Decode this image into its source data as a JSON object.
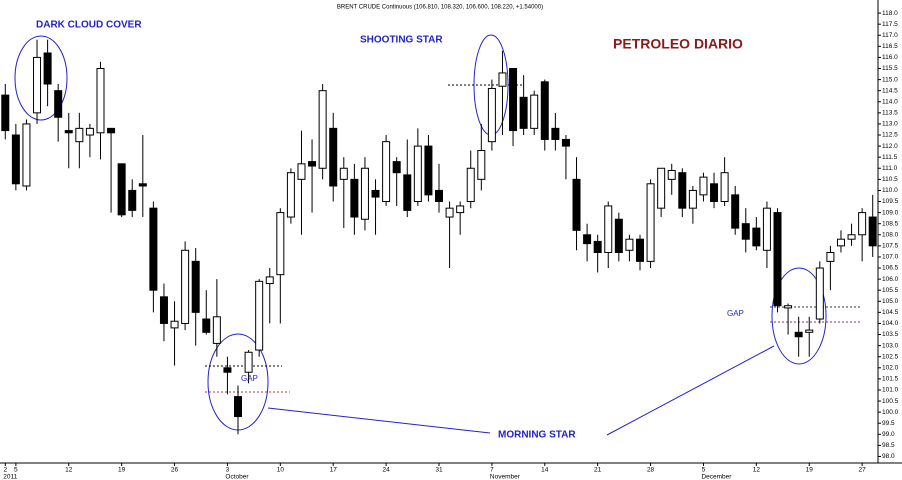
{
  "chart_data": {
    "type": "candlestick",
    "title": "PETROLEO DIARIO",
    "subtitle": "BRENT CRUDE Continuous (106.810, 108.320, 106.600, 108.220, +1.54000)",
    "annotations": [
      "DARK CLOUD COVER",
      "SHOOTING STAR",
      "MORNING STAR",
      "GAP",
      "GAP"
    ],
    "up_color": "#ffffff",
    "down_color": "#000000",
    "categories": [
      "2",
      "5",
      null,
      null,
      null,
      null,
      "12",
      null,
      null,
      null,
      null,
      "19",
      null,
      null,
      null,
      null,
      "26",
      null,
      null,
      null,
      null,
      "3",
      null,
      null,
      null,
      null,
      "10",
      null,
      null,
      null,
      null,
      "17",
      null,
      null,
      null,
      null,
      "24",
      null,
      null,
      null,
      null,
      "31",
      null,
      null,
      null,
      null,
      "7",
      null,
      null,
      null,
      null,
      "14",
      null,
      null,
      null,
      null,
      "21",
      null,
      null,
      null,
      null,
      "28",
      null,
      null,
      null,
      null,
      "5",
      null,
      null,
      null,
      null,
      "12",
      null,
      null,
      null,
      null,
      "19",
      null,
      null,
      null,
      null,
      "27",
      null
    ],
    "months": [
      "2011",
      null,
      null,
      null,
      null,
      null,
      null,
      null,
      null,
      null,
      null,
      null,
      null,
      null,
      null,
      null,
      null,
      null,
      null,
      null,
      null,
      "October",
      null,
      null,
      null,
      null,
      null,
      null,
      null,
      null,
      null,
      null,
      null,
      null,
      null,
      null,
      null,
      null,
      null,
      null,
      null,
      null,
      null,
      null,
      null,
      null,
      "November",
      null,
      null,
      null,
      null,
      null,
      null,
      null,
      null,
      null,
      null,
      null,
      null,
      null,
      null,
      null,
      null,
      null,
      null,
      null,
      "December",
      null,
      null,
      null,
      null,
      null,
      null,
      null,
      null,
      null,
      null,
      null,
      null,
      null,
      null,
      null,
      null
    ],
    "open": [
      114.3,
      112.5,
      110.2,
      113.5,
      116.2,
      114.5,
      112.7,
      112.2,
      112.5,
      112.6,
      112.8,
      111.2,
      110.0,
      110.3,
      109.2,
      105.2,
      103.8,
      104.0,
      106.8,
      104.2,
      103.1,
      102.0,
      100.7,
      101.8,
      102.8,
      105.8,
      106.2,
      108.8,
      110.5,
      111.3,
      111.0,
      112.8,
      110.5,
      110.5,
      108.7,
      110.0,
      109.5,
      111.3,
      110.7,
      109.5,
      112.0,
      110.0,
      108.8,
      109.0,
      109.5,
      110.5,
      112.2,
      114.7,
      115.5,
      114.2,
      112.8,
      114.9,
      112.8,
      112.3,
      110.5,
      108.0,
      107.7,
      107.2,
      108.7,
      107.3,
      107.8,
      106.8,
      109.2,
      110.5,
      110.8,
      109.2,
      109.8,
      110.3,
      109.5,
      109.8,
      108.5,
      108.3,
      107.3,
      109.0,
      104.7,
      103.6,
      103.6,
      104.2,
      106.8,
      107.5,
      107.8,
      108.0,
      108.8
    ],
    "high": [
      114.8,
      113.0,
      113.2,
      116.8,
      116.8,
      114.8,
      113.5,
      113.5,
      113.0,
      115.8,
      112.8,
      111.2,
      110.5,
      112.5,
      109.5,
      105.8,
      105.0,
      107.7,
      107.4,
      105.5,
      106.0,
      102.5,
      101.2,
      102.8,
      106.0,
      106.5,
      109.2,
      111.0,
      112.7,
      112.3,
      114.8,
      113.5,
      111.5,
      111.2,
      111.5,
      110.5,
      112.5,
      111.5,
      112.3,
      112.8,
      112.5,
      111.2,
      109.5,
      109.5,
      111.8,
      113.0,
      115.0,
      116.3,
      115.5,
      115.2,
      114.5,
      115.0,
      113.5,
      112.5,
      111.5,
      108.5,
      108.0,
      109.5,
      109.0,
      108.0,
      108.0,
      110.5,
      111.0,
      111.2,
      111.0,
      110.2,
      110.8,
      110.8,
      111.5,
      110.2,
      109.2,
      108.8,
      109.5,
      109.2,
      104.9,
      104.3,
      104.3,
      106.8,
      107.5,
      108.2,
      108.5,
      109.2,
      109.8
    ],
    "low": [
      112.3,
      110.0,
      110.0,
      113.0,
      113.8,
      112.2,
      111.0,
      111.0,
      111.5,
      111.4,
      109.0,
      108.8,
      108.8,
      108.8,
      104.5,
      103.2,
      102.1,
      103.7,
      103.0,
      103.5,
      102.5,
      100.8,
      99.0,
      101.3,
      102.5,
      104.0,
      104.0,
      108.5,
      108.0,
      109.0,
      110.5,
      109.5,
      108.3,
      108.0,
      108.2,
      108.0,
      109.3,
      109.3,
      108.8,
      109.3,
      109.5,
      109.0,
      106.5,
      108.0,
      109.2,
      110.0,
      111.8,
      112.5,
      112.0,
      112.5,
      112.5,
      111.8,
      111.8,
      110.5,
      107.3,
      106.8,
      106.3,
      106.5,
      106.8,
      106.8,
      106.4,
      106.5,
      108.8,
      109.8,
      108.8,
      108.5,
      109.5,
      109.2,
      109.3,
      108.0,
      107.2,
      107.3,
      106.5,
      104.5,
      103.5,
      102.5,
      102.5,
      104.0,
      105.5,
      107.2,
      107.5,
      106.8,
      107.0
    ],
    "close": [
      112.7,
      110.3,
      113.0,
      116.0,
      114.8,
      113.3,
      112.6,
      112.8,
      112.8,
      115.5,
      112.6,
      108.9,
      109.1,
      110.2,
      105.5,
      104.0,
      104.1,
      107.3,
      104.5,
      103.6,
      104.3,
      101.8,
      99.8,
      102.7,
      105.9,
      106.1,
      109.0,
      110.8,
      111.2,
      111.1,
      114.5,
      110.2,
      111.0,
      108.8,
      111.0,
      109.7,
      112.2,
      110.8,
      109.1,
      112.0,
      109.8,
      109.5,
      109.2,
      109.3,
      111.0,
      111.8,
      114.6,
      115.3,
      112.7,
      112.8,
      114.3,
      112.3,
      112.3,
      112.0,
      108.2,
      107.6,
      107.2,
      109.3,
      107.2,
      107.8,
      106.8,
      110.3,
      111.0,
      110.9,
      109.2,
      110.0,
      110.6,
      109.5,
      110.8,
      108.3,
      107.8,
      107.5,
      109.2,
      104.8,
      104.8,
      103.4,
      103.7,
      106.5,
      107.2,
      107.8,
      108.0,
      109.0,
      107.5
    ],
    "ylim": [
      97.75,
      118.5
    ],
    "yticks": [
      {
        "value": 98,
        "label": "98.0"
      },
      98.5,
      {
        "value": 99,
        "label": "99.0"
      },
      99.5,
      {
        "value": 100,
        "label": "100.0"
      },
      100.5,
      {
        "value": 101,
        "label": "101.0"
      },
      101.5,
      {
        "value": 102,
        "label": "102.0"
      },
      102.5,
      {
        "value": 103,
        "label": "103.0"
      },
      103.5,
      {
        "value": 104,
        "label": "104.0"
      },
      104.5,
      {
        "value": 105,
        "label": "105.0"
      },
      105.5,
      {
        "value": 106,
        "label": "106.0"
      },
      106.5,
      {
        "value": 107,
        "label": "107.0"
      },
      107.5,
      {
        "value": 108,
        "label": "108.0"
      },
      108.5,
      {
        "value": 109,
        "label": "109.0"
      },
      109.5,
      {
        "value": 110,
        "label": "110.0"
      },
      110.5,
      {
        "value": 111,
        "label": "111.0"
      },
      111.5,
      {
        "value": 112,
        "label": "112.0"
      },
      112.5,
      {
        "value": 113,
        "label": "113.0"
      },
      113.5,
      {
        "value": 114,
        "label": "114.0"
      },
      114.5,
      {
        "value": 115,
        "label": "115.0"
      },
      115.5,
      {
        "value": 116,
        "label": "116.0"
      },
      116.5,
      {
        "value": 117,
        "label": "117.0"
      },
      117.5,
      {
        "value": 118,
        "label": "118.0"
      }
    ]
  }
}
